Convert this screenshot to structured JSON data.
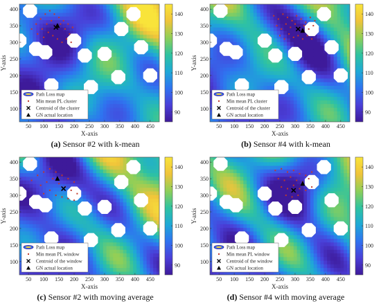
{
  "colors": {
    "colormap": [
      "#3e1a9a",
      "#4a3fd8",
      "#2f73f0",
      "#1ea9d6",
      "#2fc3a0",
      "#8fcf58",
      "#f0c43a",
      "#f9e43a"
    ],
    "cluster_marker": "#c0392b",
    "hole": "#ffffff"
  },
  "chart_data": [
    {
      "type": "heatmap",
      "caption_label": "(a)",
      "caption_text": " Sensor #2 with k-mean",
      "xlabel": "X-axis",
      "ylabel": "Y-axis",
      "xlim": [
        20,
        480
      ],
      "ylim": [
        60,
        415
      ],
      "x_ticks": [
        50,
        100,
        150,
        200,
        250,
        300,
        350,
        400,
        450
      ],
      "y_ticks": [
        100,
        150,
        200,
        250,
        300,
        350,
        400
      ],
      "colorbar": {
        "min": 85,
        "max": 145,
        "ticks": [
          90,
          100,
          110,
          120,
          130,
          140
        ]
      },
      "legend": [
        {
          "label": "Path Loss map",
          "marker": "map"
        },
        {
          "label": "Min mean PL cluster",
          "marker": "dot"
        },
        {
          "label": "Centroid of the cluster",
          "marker": "x"
        },
        {
          "label": "GN actual location",
          "marker": "triangle"
        }
      ],
      "centroid": [
        140,
        345
      ],
      "gn_location": [
        145,
        350
      ],
      "cluster_points": [
        [
          60,
          340
        ],
        [
          75,
          355
        ],
        [
          90,
          370
        ],
        [
          105,
          385
        ],
        [
          120,
          395
        ],
        [
          135,
          385
        ],
        [
          150,
          375
        ],
        [
          165,
          365
        ],
        [
          180,
          355
        ],
        [
          195,
          345
        ],
        [
          80,
          325
        ],
        [
          95,
          340
        ],
        [
          110,
          355
        ],
        [
          125,
          365
        ],
        [
          155,
          355
        ],
        [
          170,
          340
        ],
        [
          185,
          325
        ],
        [
          100,
          315
        ],
        [
          115,
          330
        ],
        [
          130,
          320
        ],
        [
          145,
          310
        ],
        [
          160,
          300
        ],
        [
          175,
          310
        ],
        [
          190,
          300
        ]
      ],
      "holes": [
        [
          55,
          395
        ],
        [
          20,
          305
        ],
        [
          75,
          280
        ],
        [
          105,
          270
        ],
        [
          125,
          170
        ],
        [
          200,
          305
        ],
        [
          235,
          260
        ],
        [
          345,
          195
        ],
        [
          395,
          385
        ],
        [
          420,
          285
        ],
        [
          450,
          200
        ],
        [
          300,
          265
        ],
        [
          255,
          165
        ],
        [
          355,
          340
        ]
      ]
    },
    {
      "type": "heatmap",
      "caption_label": "(b)",
      "caption_text": " Sensor #4 with k-mean",
      "xlabel": "X-axis",
      "ylabel": "Y-axis",
      "xlim": [
        20,
        480
      ],
      "ylim": [
        60,
        415
      ],
      "x_ticks": [
        50,
        100,
        150,
        200,
        250,
        300,
        350,
        400,
        450
      ],
      "y_ticks": [
        100,
        150,
        200,
        250,
        300,
        350,
        400
      ],
      "colorbar": {
        "min": 85,
        "max": 145,
        "ticks": [
          90,
          100,
          110,
          120,
          130,
          140
        ]
      },
      "legend": [
        {
          "label": "Path Loss map",
          "marker": "map"
        },
        {
          "label": "Min mean PL cluster",
          "marker": "dot"
        },
        {
          "label": "Centroid of the cluster",
          "marker": "x"
        },
        {
          "label": "GN actual location",
          "marker": "triangle"
        }
      ],
      "centroid": [
        310,
        340
      ],
      "gn_location": [
        325,
        335
      ],
      "cluster_points": [
        [
          230,
          380
        ],
        [
          245,
          370
        ],
        [
          260,
          385
        ],
        [
          275,
          375
        ],
        [
          290,
          365
        ],
        [
          305,
          380
        ],
        [
          320,
          370
        ],
        [
          335,
          360
        ],
        [
          350,
          375
        ],
        [
          365,
          365
        ],
        [
          240,
          350
        ],
        [
          255,
          340
        ],
        [
          270,
          355
        ],
        [
          285,
          345
        ],
        [
          300,
          355
        ],
        [
          315,
          345
        ],
        [
          330,
          350
        ],
        [
          345,
          340
        ],
        [
          360,
          350
        ],
        [
          250,
          320
        ],
        [
          265,
          310
        ],
        [
          280,
          325
        ],
        [
          295,
          315
        ],
        [
          310,
          320
        ],
        [
          325,
          310
        ],
        [
          340,
          320
        ],
        [
          355,
          310
        ]
      ],
      "holes": [
        [
          55,
          395
        ],
        [
          20,
          305
        ],
        [
          75,
          280
        ],
        [
          105,
          270
        ],
        [
          125,
          170
        ],
        [
          200,
          305
        ],
        [
          235,
          260
        ],
        [
          345,
          195
        ],
        [
          395,
          385
        ],
        [
          420,
          285
        ],
        [
          450,
          200
        ],
        [
          300,
          265
        ],
        [
          255,
          165
        ],
        [
          355,
          340
        ]
      ]
    },
    {
      "type": "heatmap",
      "caption_label": "(c)",
      "caption_text": " Sensor #2 with moving average",
      "xlabel": "X-axis",
      "ylabel": "Y-axis",
      "xlim": [
        20,
        480
      ],
      "ylim": [
        60,
        415
      ],
      "x_ticks": [
        50,
        100,
        150,
        200,
        250,
        300,
        350,
        400,
        450
      ],
      "y_ticks": [
        100,
        150,
        200,
        250,
        300,
        350,
        400
      ],
      "colorbar": {
        "min": 85,
        "max": 145,
        "ticks": [
          90,
          100,
          110,
          120,
          130,
          140
        ]
      },
      "legend": [
        {
          "label": "Path Loss map",
          "marker": "map"
        },
        {
          "label": "Min mean PL window",
          "marker": "dot"
        },
        {
          "label": "Centroid of the window",
          "marker": "x"
        },
        {
          "label": "GN actual location",
          "marker": "triangle"
        }
      ],
      "centroid": [
        165,
        320
      ],
      "gn_location": [
        145,
        350
      ],
      "cluster_points": [
        [
          60,
          345
        ],
        [
          80,
          360
        ],
        [
          100,
          370
        ],
        [
          120,
          380
        ],
        [
          140,
          370
        ],
        [
          160,
          360
        ],
        [
          180,
          350
        ],
        [
          200,
          340
        ],
        [
          90,
          330
        ],
        [
          110,
          340
        ],
        [
          130,
          350
        ],
        [
          150,
          335
        ],
        [
          170,
          325
        ],
        [
          190,
          315
        ],
        [
          210,
          305
        ],
        [
          100,
          305
        ],
        [
          120,
          315
        ],
        [
          140,
          300
        ],
        [
          160,
          295
        ],
        [
          180,
          290
        ],
        [
          200,
          285
        ]
      ],
      "holes": [
        [
          55,
          395
        ],
        [
          20,
          305
        ],
        [
          75,
          280
        ],
        [
          105,
          270
        ],
        [
          125,
          170
        ],
        [
          200,
          305
        ],
        [
          235,
          260
        ],
        [
          345,
          195
        ],
        [
          395,
          385
        ],
        [
          420,
          285
        ],
        [
          450,
          200
        ],
        [
          300,
          265
        ],
        [
          255,
          165
        ],
        [
          355,
          340
        ]
      ]
    },
    {
      "type": "heatmap",
      "caption_label": "(d)",
      "caption_text": " Sensor #4 with moving average",
      "xlabel": "X-axis",
      "ylabel": "Y-axis",
      "xlim": [
        20,
        480
      ],
      "ylim": [
        60,
        415
      ],
      "x_ticks": [
        50,
        100,
        150,
        200,
        250,
        300,
        350,
        400,
        450
      ],
      "y_ticks": [
        100,
        150,
        200,
        250,
        300,
        350,
        400
      ],
      "colorbar": {
        "min": 85,
        "max": 145,
        "ticks": [
          90,
          100,
          110,
          120,
          130,
          140
        ]
      },
      "legend": [
        {
          "label": "Path Loss map",
          "marker": "map"
        },
        {
          "label": "Min mean PL window",
          "marker": "dot"
        },
        {
          "label": "Centroid of the window",
          "marker": "x"
        },
        {
          "label": "GN actual location",
          "marker": "triangle"
        }
      ],
      "centroid": [
        295,
        315
      ],
      "gn_location": [
        325,
        335
      ],
      "cluster_points": [
        [
          235,
          375
        ],
        [
          255,
          380
        ],
        [
          275,
          370
        ],
        [
          295,
          375
        ],
        [
          315,
          365
        ],
        [
          335,
          360
        ],
        [
          355,
          370
        ],
        [
          245,
          350
        ],
        [
          265,
          345
        ],
        [
          285,
          355
        ],
        [
          305,
          345
        ],
        [
          325,
          340
        ],
        [
          345,
          350
        ],
        [
          255,
          325
        ],
        [
          275,
          320
        ],
        [
          295,
          330
        ],
        [
          315,
          320
        ],
        [
          335,
          315
        ],
        [
          355,
          325
        ],
        [
          270,
          300
        ],
        [
          290,
          295
        ],
        [
          310,
          300
        ]
      ],
      "holes": [
        [
          55,
          395
        ],
        [
          20,
          305
        ],
        [
          75,
          280
        ],
        [
          105,
          270
        ],
        [
          125,
          170
        ],
        [
          200,
          305
        ],
        [
          235,
          260
        ],
        [
          345,
          195
        ],
        [
          395,
          385
        ],
        [
          420,
          285
        ],
        [
          450,
          200
        ],
        [
          300,
          265
        ],
        [
          255,
          165
        ],
        [
          355,
          340
        ]
      ]
    }
  ]
}
